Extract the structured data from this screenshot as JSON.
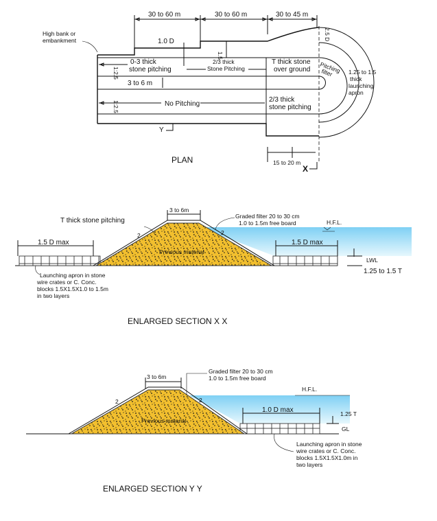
{
  "plan": {
    "dims_top": [
      "30 to 60 m",
      "30 to 60 m",
      "30 to 45 m"
    ],
    "high_bank": [
      "High bank or",
      "embankment"
    ],
    "one_d": "1.0 D",
    "one_five": "1.5",
    "two_d": "2.5 D",
    "stone_pitching_top": [
      "0-3 thick",
      "stone pitching"
    ],
    "stone_pitching_mid": [
      "2/3 thick",
      "Stone Pitching"
    ],
    "over_ground": [
      "T thick stone",
      "over ground"
    ],
    "pitching_label": "Pitching",
    "filter_label": "filter",
    "apron": [
      "1.25 to 1.5",
      "thick",
      "launching",
      "apron"
    ],
    "width": "3 to 6 m",
    "no_pitching": "No Pitching",
    "stone_pitching_bottom": [
      "2/3 thick",
      "stone pitching"
    ],
    "side_left_top": "1:2.5",
    "side_left_bottom": "1:2.5",
    "y_mark": "Y",
    "x_mark": "X",
    "bottom_dim": "15 to 20 m",
    "title": "PLAN"
  },
  "section_xx": {
    "stone_pitching": "T thick stone pitching",
    "crest": "3 to 6m",
    "filter": [
      "Graded filter 20 to 30 cm",
      "1.0 to 1.5m free board"
    ],
    "hfl": "H.F.L.",
    "left_dim": "1.5 D max",
    "right_dim": "1.5 D max",
    "slope_left": "2",
    "slope_right": "2",
    "fill": "Previous material",
    "lwl": "LWL",
    "thickness": "1.25 to 1.5 T",
    "apron_note": [
      "Launching apron in stone",
      "wire crates or C. Conc.",
      "blocks 1.5X1.5X1.0 to 1.5m",
      "in two layers"
    ],
    "title": "ENLARGED SECTION X  X"
  },
  "section_yy": {
    "crest": "3 to 6m",
    "filter": [
      "Graded filter 20 to 30 cm",
      "1.0 to 1.5m free board"
    ],
    "hfl": "H.F.L.",
    "slope_left": "2",
    "slope_right": "2",
    "fill": "Previous material",
    "right_dim": "1.0 D max",
    "thickness": "1.25 T",
    "gl": "GL",
    "apron_note": [
      "Launching apron in stone",
      "wire crates or C. Conc.",
      "blocks 1.5X1.5X1.0m in",
      "two layers"
    ],
    "title": "ENLARGED SECTION  Y Y"
  }
}
